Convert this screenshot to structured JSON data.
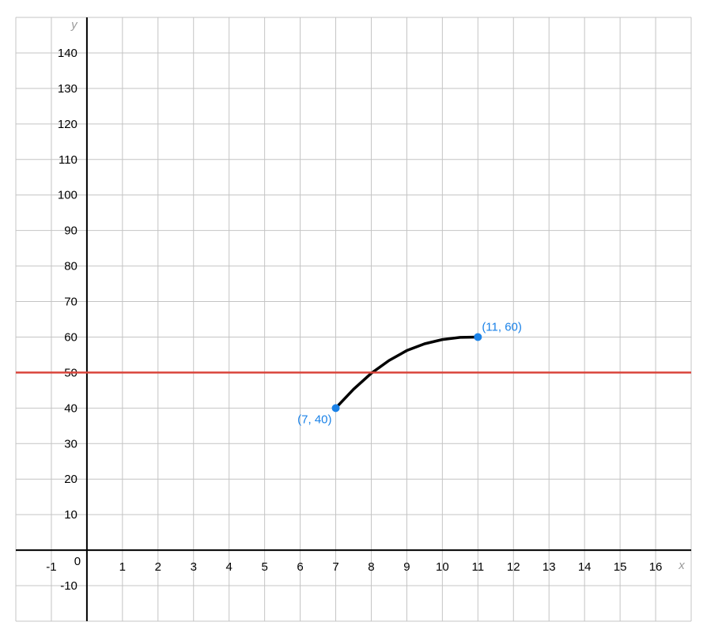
{
  "chart_data": {
    "type": "line",
    "xlabel": "x",
    "ylabel": "y",
    "xlim": [
      -2,
      17
    ],
    "ylim": [
      -20,
      150
    ],
    "grid": true,
    "x_ticks": [
      "-1",
      "1",
      "2",
      "3",
      "4",
      "5",
      "6",
      "7",
      "8",
      "9",
      "10",
      "11",
      "12",
      "13",
      "14",
      "15",
      "16"
    ],
    "x_tick_values": [
      -1,
      1,
      2,
      3,
      4,
      5,
      6,
      7,
      8,
      9,
      10,
      11,
      12,
      13,
      14,
      15,
      16
    ],
    "y_ticks": [
      "-10",
      "10",
      "20",
      "30",
      "40",
      "50",
      "60",
      "70",
      "80",
      "90",
      "100",
      "110",
      "120",
      "130",
      "140"
    ],
    "y_tick_values": [
      -10,
      10,
      20,
      30,
      40,
      50,
      60,
      70,
      80,
      90,
      100,
      110,
      120,
      130,
      140
    ],
    "origin_label": "0",
    "series": [
      {
        "style": "curve",
        "color": "#000000",
        "x": [
          7,
          7.5,
          8,
          8.5,
          9,
          9.5,
          10,
          10.5,
          11
        ],
        "y": [
          40,
          45.3,
          49.8,
          53.4,
          56.2,
          58.1,
          59.3,
          59.9,
          60
        ]
      },
      {
        "style": "horizontal-line",
        "color": "#d9453c",
        "y": 50
      }
    ],
    "points": [
      {
        "x": 7,
        "y": 40,
        "label": "(7, 40)",
        "label_side": "below-left",
        "color": "#1a82e8"
      },
      {
        "x": 11,
        "y": 60,
        "label": "(11, 60)",
        "label_side": "above-right",
        "color": "#1a82e8"
      }
    ]
  }
}
